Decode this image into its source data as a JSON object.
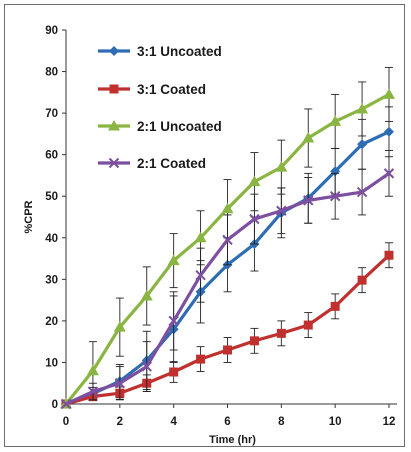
{
  "chart_data": {
    "type": "line",
    "xlabel": "Time (hr)",
    "ylabel": "%CPR",
    "xlim": [
      0,
      12
    ],
    "ylim": [
      0,
      90
    ],
    "x_ticks": [
      0,
      2,
      4,
      6,
      8,
      10,
      12
    ],
    "y_ticks": [
      0,
      10,
      20,
      30,
      40,
      50,
      60,
      70,
      80,
      90
    ],
    "x": [
      0,
      1,
      2,
      3,
      4,
      5,
      6,
      7,
      8,
      9,
      10,
      11,
      12
    ],
    "grid": false,
    "legend_position": "top-left",
    "series": [
      {
        "name": "3:1 Uncoated",
        "color": "#2e6db4",
        "marker": "diamond",
        "values": [
          0,
          2.5,
          5.5,
          10.5,
          18,
          27,
          33.5,
          38.5,
          46,
          49.5,
          56,
          62.5,
          65.5
        ],
        "errors": [
          0,
          1.5,
          4,
          7,
          8,
          7.5,
          6.5,
          6.5,
          6,
          6,
          5.5,
          6,
          6
        ]
      },
      {
        "name": "3:1 Coated",
        "color": "#c0302e",
        "marker": "square",
        "values": [
          0,
          1.8,
          2.6,
          5,
          7.7,
          10.8,
          13,
          15.2,
          17,
          19,
          23.5,
          29.8,
          35.8
        ],
        "errors": [
          0,
          1,
          1.5,
          2,
          2.5,
          3,
          3,
          3,
          3,
          3,
          3,
          3,
          3
        ]
      },
      {
        "name": "2:1 Uncoated",
        "color": "#8ab542",
        "marker": "triangle",
        "values": [
          0,
          8,
          18.5,
          26,
          34.5,
          40,
          47,
          53.5,
          57,
          64,
          68,
          71,
          74.5
        ],
        "errors": [
          0,
          7,
          7,
          7,
          6.5,
          6.5,
          7,
          7,
          6.5,
          7,
          6.5,
          6.5,
          6.5
        ]
      },
      {
        "name": "2:1 Coated",
        "color": "#7d4fa1",
        "marker": "x",
        "values": [
          0,
          3,
          5,
          9,
          20,
          31,
          39.5,
          44.5,
          46.5,
          49,
          50,
          51,
          55.5
        ],
        "errors": [
          0,
          2,
          4,
          6,
          7,
          6.5,
          6,
          6,
          5.5,
          5.5,
          5.5,
          5.5,
          5.5
        ]
      }
    ]
  }
}
